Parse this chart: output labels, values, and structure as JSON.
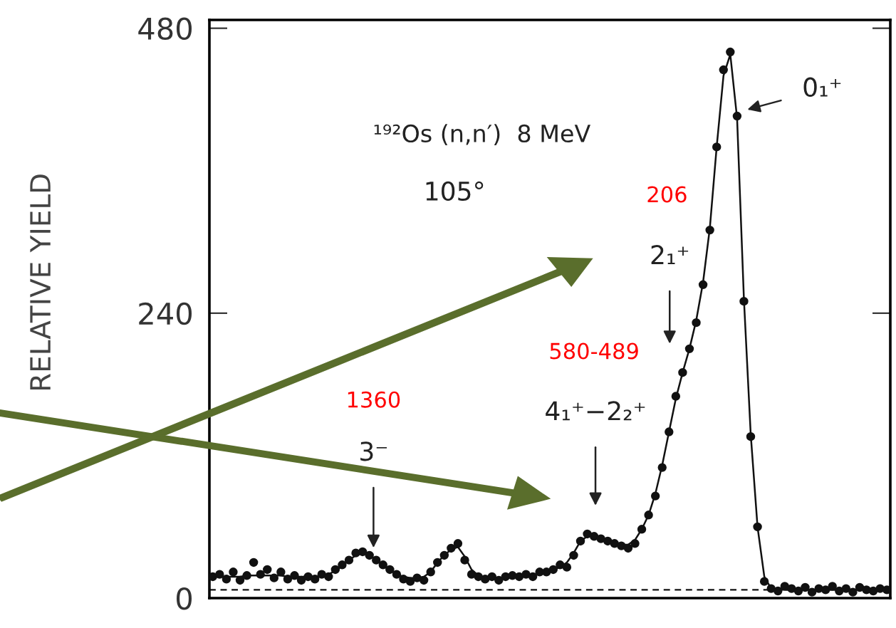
{
  "chart_data": {
    "type": "scatter",
    "ylabel": "RELATIVE YIELD",
    "categories": [
      null,
      null,
      null,
      null,
      null,
      null,
      null,
      null,
      null,
      null,
      null,
      null,
      null,
      null,
      null,
      null,
      null,
      null,
      null,
      null,
      null,
      null,
      null,
      null,
      null,
      null,
      null,
      null,
      null,
      null,
      null,
      null,
      null,
      null,
      null,
      null,
      null,
      null,
      null,
      null,
      null,
      null,
      null,
      null,
      null,
      null,
      null,
      null,
      null,
      null,
      null,
      null,
      null,
      null,
      null,
      null,
      null,
      null,
      null,
      null,
      null,
      null,
      null,
      null,
      null,
      null,
      null,
      null,
      null,
      null,
      null,
      null,
      null,
      null,
      null,
      null,
      null,
      null,
      null,
      null,
      null,
      null,
      null,
      null,
      null,
      null,
      null,
      null,
      null,
      null,
      null,
      null,
      null,
      null,
      null,
      null,
      null,
      null,
      null,
      null
    ],
    "series": [
      {
        "marker": "circle",
        "color": "#111111",
        "values": [
          18,
          20,
          16,
          22,
          15,
          19,
          30,
          20,
          24,
          17,
          22,
          16,
          19,
          15,
          18,
          16,
          20,
          18,
          24,
          28,
          32,
          38,
          39,
          36,
          32,
          28,
          24,
          20,
          16,
          14,
          17,
          15,
          22,
          30,
          36,
          42,
          46,
          32,
          20,
          18,
          16,
          18,
          15,
          18,
          19,
          18,
          20,
          18,
          22,
          22,
          24,
          28,
          26,
          36,
          48,
          54,
          52,
          50,
          48,
          46,
          44,
          42,
          46,
          58,
          70,
          86,
          110,
          140,
          170,
          190,
          210,
          232,
          264,
          310,
          380,
          445,
          460,
          406,
          250,
          136,
          60,
          14,
          8,
          6,
          10,
          8,
          6,
          9,
          5,
          8,
          7,
          10,
          6,
          8,
          5,
          9,
          7,
          6,
          8,
          7
        ]
      },
      {
        "type": "line",
        "marker": "none",
        "color": "#111111",
        "values": [
          18,
          18,
          18,
          18,
          18,
          19,
          19,
          19,
          19,
          19,
          19,
          18,
          18,
          18,
          18,
          18,
          19,
          20,
          23,
          27,
          32,
          36,
          38,
          36,
          32,
          28,
          24,
          20,
          18,
          17,
          17,
          18,
          22,
          30,
          36,
          41,
          43,
          35,
          24,
          19,
          17,
          17,
          17,
          18,
          18,
          19,
          19,
          20,
          21,
          22,
          24,
          26,
          30,
          38,
          48,
          52,
          52,
          50,
          48,
          46,
          45,
          45,
          49,
          58,
          70,
          88,
          112,
          140,
          168,
          190,
          210,
          234,
          266,
          312,
          380,
          440,
          458,
          404,
          252,
          138,
          60,
          18,
          8,
          7,
          7,
          7,
          7,
          7,
          7,
          7,
          7,
          7,
          7,
          7,
          7,
          7,
          7,
          7,
          7,
          7
        ]
      }
    ],
    "ylim": [
      0,
      487
    ],
    "yticks": [
      0,
      240,
      480
    ],
    "ref_lines": [
      {
        "axis": "y",
        "value": 7,
        "line_style": "dashed",
        "color": "#111111"
      }
    ],
    "grid": false,
    "legend": false,
    "annotations": [
      "¹⁹²Os (n,n′)  8 MeV",
      "105°",
      "0₁⁺",
      "2₁⁺",
      "4₁⁺−2₂⁺",
      "3⁻",
      "206",
      "580-489",
      "1360"
    ]
  }
}
